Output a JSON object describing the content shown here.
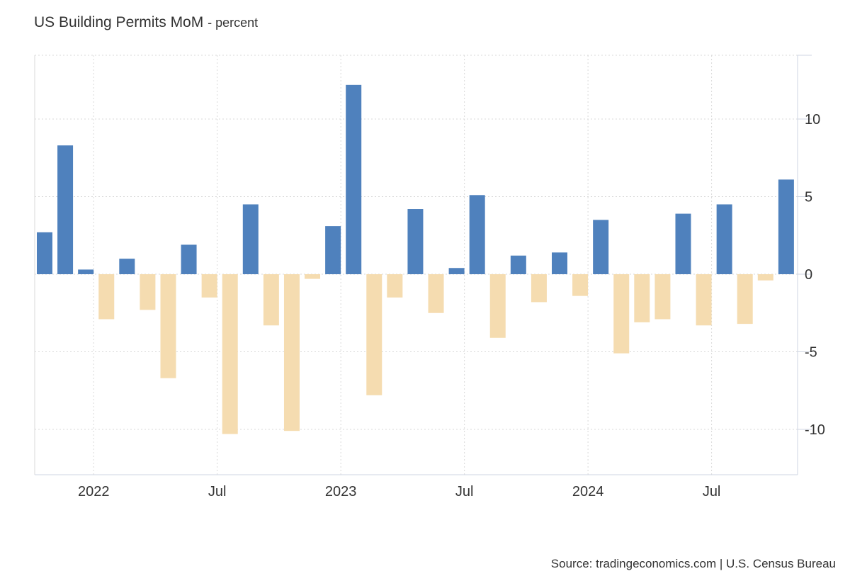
{
  "chart_data": {
    "type": "bar",
    "title": "US Building Permits MoM",
    "unit": "percent",
    "source": "Source: tradingeconomics.com | U.S. Census Bureau",
    "ylim": [
      -13,
      14
    ],
    "yticks": [
      10,
      5,
      0,
      -5,
      -10
    ],
    "xticks": [
      {
        "label": "2022",
        "index": 2.38
      },
      {
        "label": "Jul",
        "index": 8.38
      },
      {
        "label": "2023",
        "index": 14.38
      },
      {
        "label": "Jul",
        "index": 20.38
      },
      {
        "label": "2024",
        "index": 26.38
      },
      {
        "label": "Jul",
        "index": 32.38
      }
    ],
    "grid": true,
    "colors": {
      "positive": "#4f81bd",
      "negative": "#f5dcb0"
    },
    "values": [
      2.7,
      8.3,
      0.3,
      -2.9,
      1.0,
      -2.3,
      -6.7,
      1.9,
      -1.5,
      -10.3,
      4.5,
      -3.3,
      -10.1,
      -0.3,
      3.1,
      12.2,
      -7.8,
      -1.5,
      4.2,
      -2.5,
      0.4,
      5.1,
      -4.1,
      1.2,
      -1.8,
      1.4,
      -1.4,
      3.5,
      -5.1,
      -3.1,
      -2.9,
      3.9,
      -3.3,
      4.5,
      -3.2,
      -0.4,
      6.1
    ]
  }
}
